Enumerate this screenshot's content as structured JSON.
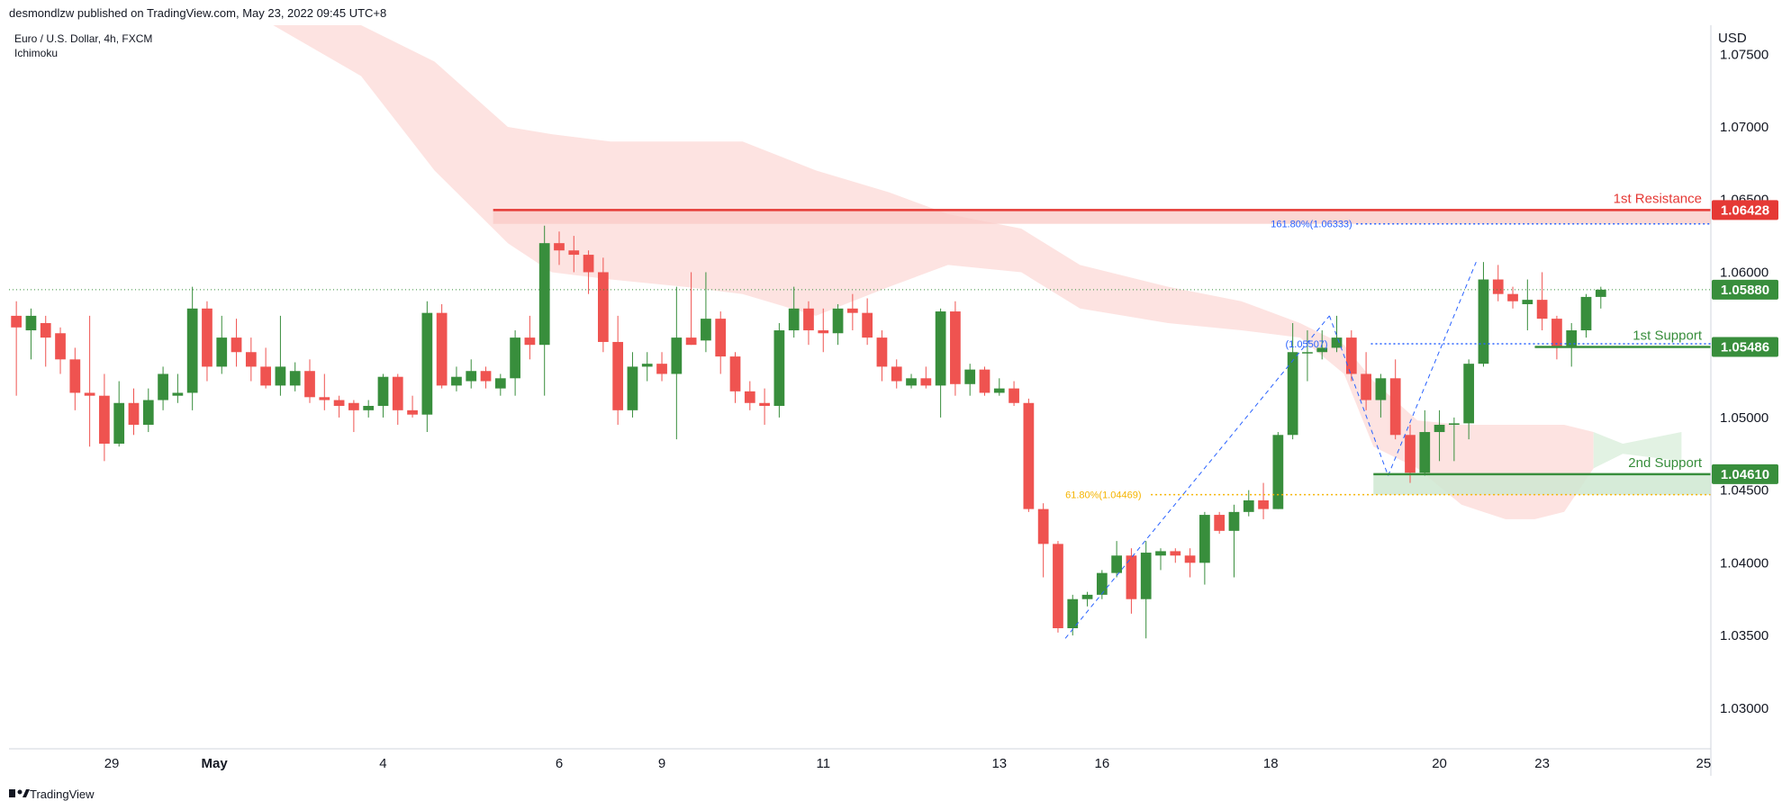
{
  "header": {
    "publisher_line": "desmondlzw published on TradingView.com, May 23, 2022 09:45 UTC+8",
    "symbol_line": "Euro / U.S. Dollar, 4h, FXCM",
    "indicator": "Ichimoku"
  },
  "footer": {
    "brand": "TradingView"
  },
  "colors": {
    "bull": "#388e3c",
    "bear": "#ef5350",
    "resistance": "#e53935",
    "support": "#388e3c",
    "fib_blue": "#2962ff",
    "fib_orange": "#f5b400",
    "cloud_red": "#fde3e1",
    "cloud_green": "#e2f2e3",
    "current_price": "#388e3c"
  },
  "chart_data": {
    "type": "candlestick",
    "currency_label": "USD",
    "y_ticks": [
      "1.07500",
      "1.07000",
      "1.06500",
      "1.06000",
      "1.05500",
      "1.05000",
      "1.04500",
      "1.04000",
      "1.03500",
      "1.03000"
    ],
    "ylim": [
      1.0272,
      1.077
    ],
    "x_range": [
      0,
      116
    ],
    "x_ticks": [
      {
        "label": "29",
        "x": 7
      },
      {
        "label": "May",
        "x": 14
      },
      {
        "label": "4",
        "x": 25.5
      },
      {
        "label": "6",
        "x": 37.5
      },
      {
        "label": "9",
        "x": 44.5
      },
      {
        "label": "11",
        "x": 55.5
      },
      {
        "label": "13",
        "x": 67.5
      },
      {
        "label": "16",
        "x": 74.5
      },
      {
        "label": "18",
        "x": 86
      },
      {
        "label": "20",
        "x": 97.5
      },
      {
        "label": "23",
        "x": 104.5
      },
      {
        "label": "25",
        "x": 115.5
      }
    ],
    "candles": [
      {
        "x": 0,
        "o": 1.057,
        "h": 1.058,
        "l": 1.0515,
        "c": 1.0562
      },
      {
        "x": 1,
        "o": 1.056,
        "h": 1.0575,
        "l": 1.054,
        "c": 1.057
      },
      {
        "x": 2,
        "o": 1.0565,
        "h": 1.057,
        "l": 1.0535,
        "c": 1.0555
      },
      {
        "x": 3,
        "o": 1.0558,
        "h": 1.0562,
        "l": 1.053,
        "c": 1.054
      },
      {
        "x": 4,
        "o": 1.054,
        "h": 1.0548,
        "l": 1.0505,
        "c": 1.0517
      },
      {
        "x": 5,
        "o": 1.0517,
        "h": 1.057,
        "l": 1.048,
        "c": 1.0515
      },
      {
        "x": 6,
        "o": 1.0515,
        "h": 1.053,
        "l": 1.047,
        "c": 1.0482
      },
      {
        "x": 7,
        "o": 1.0482,
        "h": 1.0525,
        "l": 1.048,
        "c": 1.051
      },
      {
        "x": 8,
        "o": 1.051,
        "h": 1.052,
        "l": 1.0488,
        "c": 1.0495
      },
      {
        "x": 9,
        "o": 1.0495,
        "h": 1.052,
        "l": 1.049,
        "c": 1.0512
      },
      {
        "x": 10,
        "o": 1.0512,
        "h": 1.0535,
        "l": 1.0505,
        "c": 1.053
      },
      {
        "x": 11,
        "o": 1.0515,
        "h": 1.053,
        "l": 1.051,
        "c": 1.0517
      },
      {
        "x": 12,
        "o": 1.0517,
        "h": 1.059,
        "l": 1.0505,
        "c": 1.0575
      },
      {
        "x": 13,
        "o": 1.0575,
        "h": 1.058,
        "l": 1.0525,
        "c": 1.0535
      },
      {
        "x": 14,
        "o": 1.0535,
        "h": 1.057,
        "l": 1.053,
        "c": 1.0555
      },
      {
        "x": 15,
        "o": 1.0555,
        "h": 1.0568,
        "l": 1.0535,
        "c": 1.0545
      },
      {
        "x": 16,
        "o": 1.0545,
        "h": 1.0555,
        "l": 1.0525,
        "c": 1.0535
      },
      {
        "x": 17,
        "o": 1.0535,
        "h": 1.0548,
        "l": 1.052,
        "c": 1.0522
      },
      {
        "x": 18,
        "o": 1.0522,
        "h": 1.057,
        "l": 1.0515,
        "c": 1.0535
      },
      {
        "x": 19,
        "o": 1.0522,
        "h": 1.0538,
        "l": 1.0518,
        "c": 1.0532
      },
      {
        "x": 20,
        "o": 1.0532,
        "h": 1.054,
        "l": 1.051,
        "c": 1.0514
      },
      {
        "x": 21,
        "o": 1.0514,
        "h": 1.053,
        "l": 1.0505,
        "c": 1.0512
      },
      {
        "x": 22,
        "o": 1.0512,
        "h": 1.0515,
        "l": 1.05,
        "c": 1.0508
      },
      {
        "x": 23,
        "o": 1.051,
        "h": 1.0512,
        "l": 1.049,
        "c": 1.0505
      },
      {
        "x": 24,
        "o": 1.0505,
        "h": 1.0512,
        "l": 1.05,
        "c": 1.0508
      },
      {
        "x": 25,
        "o": 1.0508,
        "h": 1.053,
        "l": 1.05,
        "c": 1.0528
      },
      {
        "x": 26,
        "o": 1.0528,
        "h": 1.053,
        "l": 1.0495,
        "c": 1.0505
      },
      {
        "x": 27,
        "o": 1.0505,
        "h": 1.0515,
        "l": 1.05,
        "c": 1.0502
      },
      {
        "x": 28,
        "o": 1.0502,
        "h": 1.058,
        "l": 1.049,
        "c": 1.0572
      },
      {
        "x": 29,
        "o": 1.0572,
        "h": 1.0578,
        "l": 1.052,
        "c": 1.0522
      },
      {
        "x": 30,
        "o": 1.0522,
        "h": 1.0535,
        "l": 1.0518,
        "c": 1.0528
      },
      {
        "x": 31,
        "o": 1.0525,
        "h": 1.054,
        "l": 1.052,
        "c": 1.0532
      },
      {
        "x": 32,
        "o": 1.0532,
        "h": 1.0535,
        "l": 1.052,
        "c": 1.0525
      },
      {
        "x": 33,
        "o": 1.052,
        "h": 1.053,
        "l": 1.0515,
        "c": 1.0527
      },
      {
        "x": 34,
        "o": 1.0527,
        "h": 1.056,
        "l": 1.0515,
        "c": 1.0555
      },
      {
        "x": 35,
        "o": 1.0555,
        "h": 1.057,
        "l": 1.054,
        "c": 1.055
      },
      {
        "x": 36,
        "o": 1.055,
        "h": 1.0632,
        "l": 1.0515,
        "c": 1.062
      },
      {
        "x": 37,
        "o": 1.062,
        "h": 1.0628,
        "l": 1.0605,
        "c": 1.0615
      },
      {
        "x": 38,
        "o": 1.0615,
        "h": 1.0625,
        "l": 1.06,
        "c": 1.0612
      },
      {
        "x": 39,
        "o": 1.0612,
        "h": 1.0615,
        "l": 1.0585,
        "c": 1.06
      },
      {
        "x": 40,
        "o": 1.06,
        "h": 1.061,
        "l": 1.0545,
        "c": 1.0552
      },
      {
        "x": 41,
        "o": 1.0552,
        "h": 1.057,
        "l": 1.0495,
        "c": 1.0505
      },
      {
        "x": 42,
        "o": 1.0505,
        "h": 1.0545,
        "l": 1.05,
        "c": 1.0535
      },
      {
        "x": 43,
        "o": 1.0535,
        "h": 1.0545,
        "l": 1.0525,
        "c": 1.0537
      },
      {
        "x": 44,
        "o": 1.0537,
        "h": 1.0545,
        "l": 1.0525,
        "c": 1.053
      },
      {
        "x": 45,
        "o": 1.053,
        "h": 1.059,
        "l": 1.0485,
        "c": 1.0555
      },
      {
        "x": 46,
        "o": 1.0555,
        "h": 1.06,
        "l": 1.055,
        "c": 1.055
      },
      {
        "x": 47,
        "o": 1.0553,
        "h": 1.06,
        "l": 1.0545,
        "c": 1.0568
      },
      {
        "x": 48,
        "o": 1.0568,
        "h": 1.0573,
        "l": 1.053,
        "c": 1.0542
      },
      {
        "x": 49,
        "o": 1.0542,
        "h": 1.0545,
        "l": 1.051,
        "c": 1.0518
      },
      {
        "x": 50,
        "o": 1.0518,
        "h": 1.0525,
        "l": 1.0505,
        "c": 1.051
      },
      {
        "x": 51,
        "o": 1.051,
        "h": 1.052,
        "l": 1.0495,
        "c": 1.0508
      },
      {
        "x": 52,
        "o": 1.0508,
        "h": 1.0565,
        "l": 1.05,
        "c": 1.056
      },
      {
        "x": 53,
        "o": 1.056,
        "h": 1.059,
        "l": 1.0555,
        "c": 1.0575
      },
      {
        "x": 54,
        "o": 1.0575,
        "h": 1.058,
        "l": 1.055,
        "c": 1.056
      },
      {
        "x": 55,
        "o": 1.056,
        "h": 1.0575,
        "l": 1.0545,
        "c": 1.0558
      },
      {
        "x": 56,
        "o": 1.0558,
        "h": 1.0578,
        "l": 1.055,
        "c": 1.0575
      },
      {
        "x": 57,
        "o": 1.0575,
        "h": 1.0585,
        "l": 1.056,
        "c": 1.0572
      },
      {
        "x": 58,
        "o": 1.0572,
        "h": 1.0582,
        "l": 1.055,
        "c": 1.0555
      },
      {
        "x": 59,
        "o": 1.0555,
        "h": 1.056,
        "l": 1.0525,
        "c": 1.0535
      },
      {
        "x": 60,
        "o": 1.0535,
        "h": 1.054,
        "l": 1.052,
        "c": 1.0525
      },
      {
        "x": 61,
        "o": 1.0522,
        "h": 1.053,
        "l": 1.052,
        "c": 1.0527
      },
      {
        "x": 62,
        "o": 1.0527,
        "h": 1.0535,
        "l": 1.052,
        "c": 1.0522
      },
      {
        "x": 63,
        "o": 1.0522,
        "h": 1.0575,
        "l": 1.05,
        "c": 1.0573
      },
      {
        "x": 64,
        "o": 1.0573,
        "h": 1.058,
        "l": 1.0515,
        "c": 1.0523
      },
      {
        "x": 65,
        "o": 1.0523,
        "h": 1.0537,
        "l": 1.0515,
        "c": 1.0533
      },
      {
        "x": 66,
        "o": 1.0533,
        "h": 1.0535,
        "l": 1.0515,
        "c": 1.0517
      },
      {
        "x": 67,
        "o": 1.0517,
        "h": 1.0527,
        "l": 1.0515,
        "c": 1.052
      },
      {
        "x": 68,
        "o": 1.052,
        "h": 1.0525,
        "l": 1.0508,
        "c": 1.051
      },
      {
        "x": 69,
        "o": 1.051,
        "h": 1.0513,
        "l": 1.0435,
        "c": 1.0437
      },
      {
        "x": 70,
        "o": 1.0437,
        "h": 1.0441,
        "l": 1.039,
        "c": 1.0413
      },
      {
        "x": 71,
        "o": 1.0413,
        "h": 1.0415,
        "l": 1.0352,
        "c": 1.0355
      },
      {
        "x": 72,
        "o": 1.0355,
        "h": 1.0378,
        "l": 1.035,
        "c": 1.0375
      },
      {
        "x": 73,
        "o": 1.0375,
        "h": 1.038,
        "l": 1.037,
        "c": 1.0378
      },
      {
        "x": 74,
        "o": 1.0378,
        "h": 1.0395,
        "l": 1.0375,
        "c": 1.0393
      },
      {
        "x": 75,
        "o": 1.0393,
        "h": 1.0415,
        "l": 1.039,
        "c": 1.0405
      },
      {
        "x": 76,
        "o": 1.0405,
        "h": 1.041,
        "l": 1.0365,
        "c": 1.0375
      },
      {
        "x": 77,
        "o": 1.0375,
        "h": 1.0415,
        "l": 1.0348,
        "c": 1.0407
      },
      {
        "x": 78,
        "o": 1.0405,
        "h": 1.041,
        "l": 1.0395,
        "c": 1.0408
      },
      {
        "x": 79,
        "o": 1.0408,
        "h": 1.041,
        "l": 1.04,
        "c": 1.0405
      },
      {
        "x": 80,
        "o": 1.0405,
        "h": 1.041,
        "l": 1.039,
        "c": 1.04
      },
      {
        "x": 81,
        "o": 1.04,
        "h": 1.0435,
        "l": 1.0385,
        "c": 1.0433
      },
      {
        "x": 82,
        "o": 1.0433,
        "h": 1.0435,
        "l": 1.042,
        "c": 1.0422
      },
      {
        "x": 83,
        "o": 1.0422,
        "h": 1.044,
        "l": 1.039,
        "c": 1.0435
      },
      {
        "x": 84,
        "o": 1.0435,
        "h": 1.045,
        "l": 1.0432,
        "c": 1.0443
      },
      {
        "x": 85,
        "o": 1.0443,
        "h": 1.0455,
        "l": 1.043,
        "c": 1.0437
      },
      {
        "x": 86,
        "o": 1.0437,
        "h": 1.049,
        "l": 1.0437,
        "c": 1.0488
      },
      {
        "x": 87,
        "o": 1.0488,
        "h": 1.0565,
        "l": 1.0485,
        "c": 1.0545
      },
      {
        "x": 88,
        "o": 1.0545,
        "h": 1.056,
        "l": 1.0525,
        "c": 1.0545
      },
      {
        "x": 89,
        "o": 1.0545,
        "h": 1.056,
        "l": 1.054,
        "c": 1.0548
      },
      {
        "x": 90,
        "o": 1.0548,
        "h": 1.057,
        "l": 1.0545,
        "c": 1.0555
      },
      {
        "x": 91,
        "o": 1.0555,
        "h": 1.056,
        "l": 1.0525,
        "c": 1.053
      },
      {
        "x": 92,
        "o": 1.053,
        "h": 1.0545,
        "l": 1.0505,
        "c": 1.0512
      },
      {
        "x": 93,
        "o": 1.0512,
        "h": 1.053,
        "l": 1.05,
        "c": 1.0527
      },
      {
        "x": 94,
        "o": 1.0527,
        "h": 1.054,
        "l": 1.0485,
        "c": 1.0488
      },
      {
        "x": 95,
        "o": 1.0488,
        "h": 1.0495,
        "l": 1.0455,
        "c": 1.0462
      },
      {
        "x": 96,
        "o": 1.0462,
        "h": 1.0505,
        "l": 1.046,
        "c": 1.049
      },
      {
        "x": 97,
        "o": 1.049,
        "h": 1.0505,
        "l": 1.047,
        "c": 1.0495
      },
      {
        "x": 98,
        "o": 1.0495,
        "h": 1.05,
        "l": 1.047,
        "c": 1.0496
      },
      {
        "x": 99,
        "o": 1.0496,
        "h": 1.054,
        "l": 1.0485,
        "c": 1.0537
      },
      {
        "x": 100,
        "o": 1.0537,
        "h": 1.0607,
        "l": 1.0535,
        "c": 1.0595
      },
      {
        "x": 101,
        "o": 1.0595,
        "h": 1.0605,
        "l": 1.058,
        "c": 1.0585
      },
      {
        "x": 102,
        "o": 1.0585,
        "h": 1.059,
        "l": 1.0575,
        "c": 1.058
      },
      {
        "x": 103,
        "o": 1.0578,
        "h": 1.0595,
        "l": 1.056,
        "c": 1.0581
      },
      {
        "x": 104,
        "o": 1.0581,
        "h": 1.06,
        "l": 1.056,
        "c": 1.0568
      },
      {
        "x": 105,
        "o": 1.0568,
        "h": 1.057,
        "l": 1.054,
        "c": 1.0548
      },
      {
        "x": 106,
        "o": 1.0548,
        "h": 1.0565,
        "l": 1.0535,
        "c": 1.056
      },
      {
        "x": 107,
        "o": 1.056,
        "h": 1.0585,
        "l": 1.0555,
        "c": 1.0583
      },
      {
        "x": 108,
        "o": 1.0583,
        "h": 1.059,
        "l": 1.0575,
        "c": 1.0588
      }
    ],
    "cloud": [
      {
        "x": 18,
        "top": 1.077,
        "bottom": 1.077
      },
      {
        "x": 24,
        "top": 1.077,
        "bottom": 1.0735
      },
      {
        "x": 29,
        "top": 1.0745,
        "bottom": 1.067
      },
      {
        "x": 34,
        "top": 1.07,
        "bottom": 1.062
      },
      {
        "x": 37,
        "top": 1.0695,
        "bottom": 1.06
      },
      {
        "x": 41,
        "top": 1.069,
        "bottom": 1.0595
      },
      {
        "x": 46,
        "top": 1.069,
        "bottom": 1.059
      },
      {
        "x": 50,
        "top": 1.069,
        "bottom": 1.0585
      },
      {
        "x": 55,
        "top": 1.067,
        "bottom": 1.057
      },
      {
        "x": 60,
        "top": 1.0655,
        "bottom": 1.059
      },
      {
        "x": 64,
        "top": 1.064,
        "bottom": 1.0605
      },
      {
        "x": 69,
        "top": 1.063,
        "bottom": 1.06
      },
      {
        "x": 73,
        "top": 1.0605,
        "bottom": 1.0575
      },
      {
        "x": 79,
        "top": 1.059,
        "bottom": 1.0565
      },
      {
        "x": 84,
        "top": 1.058,
        "bottom": 1.056
      },
      {
        "x": 88,
        "top": 1.0565,
        "bottom": 1.0555
      },
      {
        "x": 91,
        "top": 1.055,
        "bottom": 1.053
      },
      {
        "x": 93,
        "top": 1.0525,
        "bottom": 1.048
      },
      {
        "x": 96,
        "top": 1.0498,
        "bottom": 1.0465
      },
      {
        "x": 99,
        "top": 1.0495,
        "bottom": 1.044
      },
      {
        "x": 102,
        "top": 1.0495,
        "bottom": 1.043
      },
      {
        "x": 104,
        "top": 1.0495,
        "bottom": 1.043
      },
      {
        "x": 106,
        "top": 1.0495,
        "bottom": 1.0435
      },
      {
        "x": 108,
        "top": 1.049,
        "bottom": 1.0465
      },
      {
        "x": 110,
        "top": 1.0475,
        "bottom": 1.0482
      },
      {
        "x": 114,
        "top": 1.047,
        "bottom": 1.049
      }
    ],
    "levels": [
      {
        "label": "1st Resistance",
        "value": 1.06428,
        "price_tag": "1.06428",
        "kind": "resistance",
        "x_start": 33
      },
      {
        "label": "1st Support",
        "value": 1.05486,
        "price_tag": "1.05486",
        "kind": "support",
        "x_start": 104
      },
      {
        "label": "2nd Support",
        "value": 1.0461,
        "price_tag": "1.04610",
        "kind": "support",
        "x_start": 93
      }
    ],
    "current_price": {
      "value": 1.0588,
      "label": "1.05880"
    },
    "fib_levels": [
      {
        "label": "161.80%(1.06333)",
        "value": 1.06333,
        "x_start": 86,
        "color": "blue"
      },
      {
        "label": "(1.05507)",
        "value": 1.05507,
        "x_start": 87,
        "color": "blue"
      },
      {
        "label": "61.80%(1.04469)",
        "value": 1.04469,
        "x_start": 72,
        "color": "orange"
      }
    ],
    "fib_lines": [
      {
        "x1": 72,
        "y1": 1.0348,
        "x2": 90,
        "y2": 1.057
      },
      {
        "x1": 90,
        "y1": 1.057,
        "x2": 94,
        "y2": 1.046
      },
      {
        "x1": 94,
        "y1": 1.046,
        "x2": 100,
        "y2": 1.0607
      }
    ]
  }
}
